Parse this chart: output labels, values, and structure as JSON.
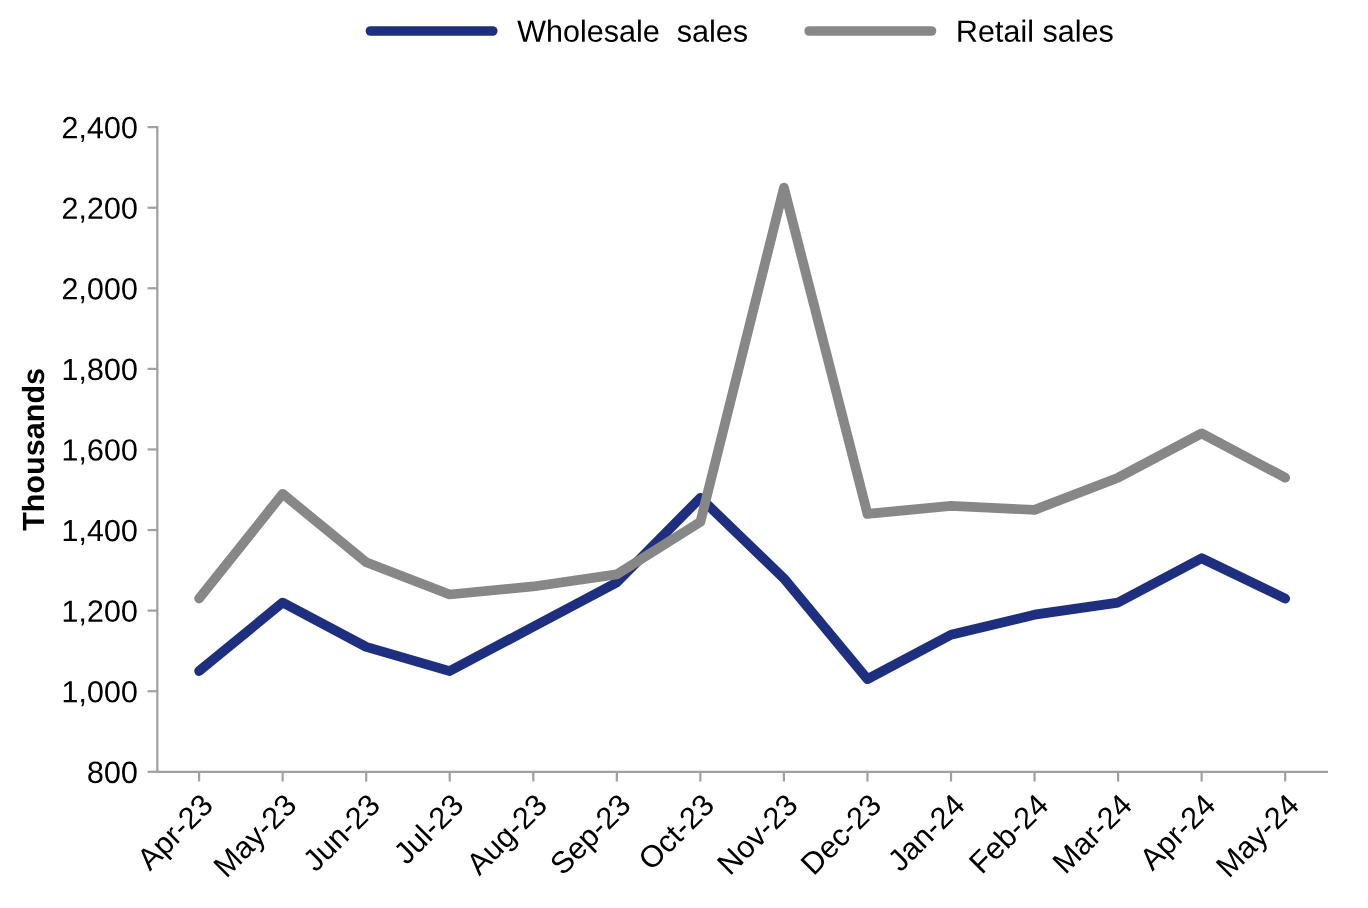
{
  "chart_data": {
    "type": "line",
    "ylabel": "Thousands",
    "categories": [
      "Apr-23",
      "May-23",
      "Jun-23",
      "Jul-23",
      "Aug-23",
      "Sep-23",
      "Oct-23",
      "Nov-23",
      "Dec-23",
      "Jan-24",
      "Feb-24",
      "Mar-24",
      "Apr-24",
      "May-24"
    ],
    "series": [
      {
        "name": "Wholesale  sales",
        "color": "#1f2f7f",
        "values": [
          1050,
          1220,
          1110,
          1050,
          1160,
          1270,
          1480,
          1280,
          1030,
          1140,
          1190,
          1220,
          1330,
          1230
        ]
      },
      {
        "name": "Retail sales",
        "color": "#878787",
        "values": [
          1230,
          1490,
          1320,
          1240,
          1260,
          1290,
          1420,
          2250,
          1440,
          1460,
          1450,
          1530,
          1640,
          1530
        ]
      }
    ],
    "ylim": [
      800,
      2400
    ],
    "yticks": [
      {
        "value": 800,
        "label": "800"
      },
      {
        "value": 1000,
        "label": "1,000"
      },
      {
        "value": 1200,
        "label": "1,200"
      },
      {
        "value": 1400,
        "label": "1,400"
      },
      {
        "value": 1600,
        "label": "1,600"
      },
      {
        "value": 1800,
        "label": "1,800"
      },
      {
        "value": 2000,
        "label": "2,000"
      },
      {
        "value": 2200,
        "label": "2,200"
      },
      {
        "value": 2400,
        "label": "2,400"
      }
    ],
    "grid": false,
    "legend": "top",
    "marker": "none",
    "line_style": "solid"
  }
}
